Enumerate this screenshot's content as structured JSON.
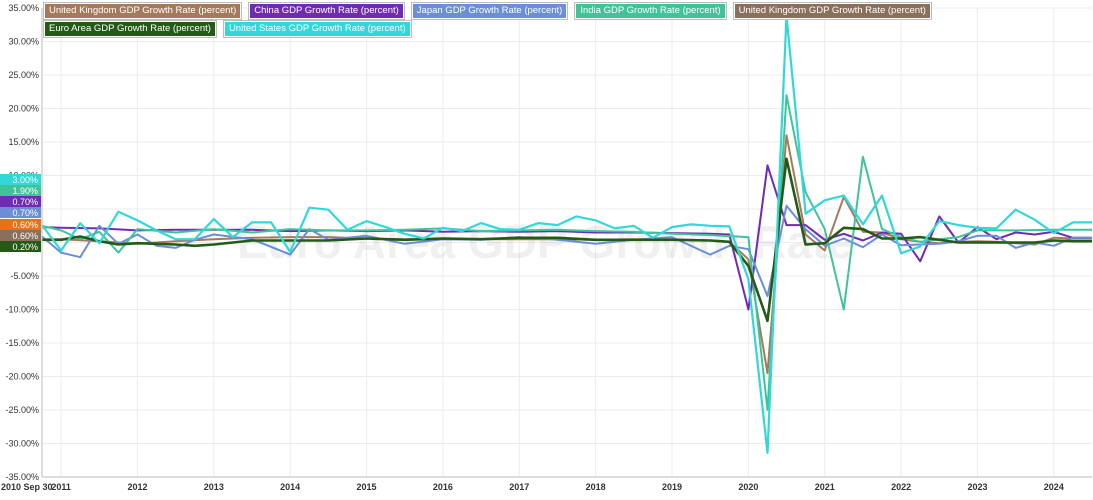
{
  "chart_data": {
    "type": "line",
    "watermark": "Euro Area GDP Growth Rate",
    "x_start_label": "2010 Sep 30",
    "x_ticks": [
      "2011",
      "2012",
      "2013",
      "2014",
      "2015",
      "2016",
      "2017",
      "2018",
      "2019",
      "2020",
      "2021",
      "2022",
      "2023",
      "2024"
    ],
    "y_ticks": [
      "35.00%",
      "30.00%",
      "25.00%",
      "20.00%",
      "15.00%",
      "10.00%",
      "5.00%",
      "0.00%",
      "-5.00%",
      "-10.00%",
      "-15.00%",
      "-20.00%",
      "-25.00%",
      "-30.00%",
      "-35.00%"
    ],
    "ylim": [
      -35,
      35
    ],
    "xlim": [
      2010.75,
      2024.5
    ],
    "series": [
      {
        "name": "United Kingdom GDP Growth Rate (percent)",
        "color": "#a47a5c",
        "end_label": "0.60%",
        "values": [
          [
            2010.75,
            0.5
          ],
          [
            2011.0,
            0.5
          ],
          [
            2011.5,
            0.2
          ],
          [
            2012.0,
            -0.2
          ],
          [
            2012.5,
            0.2
          ],
          [
            2013.0,
            0.5
          ],
          [
            2013.5,
            0.7
          ],
          [
            2014.0,
            0.8
          ],
          [
            2014.5,
            0.8
          ],
          [
            2015.0,
            0.6
          ],
          [
            2015.5,
            0.5
          ],
          [
            2016.0,
            0.5
          ],
          [
            2016.5,
            0.5
          ],
          [
            2017.0,
            0.5
          ],
          [
            2017.5,
            0.5
          ],
          [
            2018.0,
            0.4
          ],
          [
            2018.5,
            0.5
          ],
          [
            2019.0,
            0.5
          ],
          [
            2019.5,
            0.3
          ],
          [
            2019.75,
            0.1
          ],
          [
            2020.0,
            -2.5
          ],
          [
            2020.25,
            -19.5
          ],
          [
            2020.5,
            16.0
          ],
          [
            2020.75,
            1.2
          ],
          [
            2021.0,
            -1.2
          ],
          [
            2021.25,
            6.8
          ],
          [
            2021.5,
            1.6
          ],
          [
            2021.75,
            1.5
          ],
          [
            2022.0,
            0.5
          ],
          [
            2022.25,
            0.1
          ],
          [
            2022.5,
            -0.1
          ],
          [
            2022.75,
            0.1
          ],
          [
            2023.0,
            0.2
          ],
          [
            2023.25,
            0.1
          ],
          [
            2023.5,
            -0.1
          ],
          [
            2023.75,
            -0.3
          ],
          [
            2024.0,
            0.7
          ],
          [
            2024.25,
            0.6
          ],
          [
            2024.5,
            0.6
          ]
        ]
      },
      {
        "name": "China GDP Growth Rate (percent)",
        "color": "#6f2bb2",
        "end_label": "0.70%",
        "values": [
          [
            2010.75,
            2.3
          ],
          [
            2011.0,
            2.2
          ],
          [
            2011.5,
            2.1
          ],
          [
            2012.0,
            1.8
          ],
          [
            2012.5,
            1.9
          ],
          [
            2013.0,
            1.9
          ],
          [
            2013.5,
            1.9
          ],
          [
            2014.0,
            1.7
          ],
          [
            2014.5,
            1.8
          ],
          [
            2015.0,
            1.7
          ],
          [
            2015.5,
            1.8
          ],
          [
            2016.0,
            1.6
          ],
          [
            2016.5,
            1.7
          ],
          [
            2017.0,
            1.6
          ],
          [
            2017.5,
            1.7
          ],
          [
            2018.0,
            1.5
          ],
          [
            2018.5,
            1.5
          ],
          [
            2019.0,
            1.4
          ],
          [
            2019.5,
            1.3
          ],
          [
            2019.75,
            1.2
          ],
          [
            2020.0,
            -10.0
          ],
          [
            2020.25,
            11.5
          ],
          [
            2020.5,
            2.6
          ],
          [
            2020.75,
            2.6
          ],
          [
            2021.0,
            0.4
          ],
          [
            2021.25,
            1.3
          ],
          [
            2021.5,
            0.3
          ],
          [
            2021.75,
            1.5
          ],
          [
            2022.0,
            1.3
          ],
          [
            2022.25,
            -2.8
          ],
          [
            2022.5,
            3.9
          ],
          [
            2022.75,
            0.0
          ],
          [
            2023.0,
            2.3
          ],
          [
            2023.25,
            0.5
          ],
          [
            2023.5,
            1.5
          ],
          [
            2023.75,
            1.2
          ],
          [
            2024.0,
            1.6
          ],
          [
            2024.25,
            0.7
          ],
          [
            2024.5,
            0.7
          ]
        ]
      },
      {
        "name": "Japan GDP Growth Rate (percent)",
        "color": "#6b8ed6",
        "end_label": "0.70%",
        "values": [
          [
            2010.75,
            0.9
          ],
          [
            2011.0,
            -1.5
          ],
          [
            2011.25,
            -2.2
          ],
          [
            2011.5,
            2.5
          ],
          [
            2011.75,
            -0.2
          ],
          [
            2012.0,
            1.2
          ],
          [
            2012.25,
            -0.5
          ],
          [
            2012.5,
            -0.8
          ],
          [
            2012.75,
            0.4
          ],
          [
            2013.0,
            1.2
          ],
          [
            2013.5,
            0.5
          ],
          [
            2014.0,
            -1.8
          ],
          [
            2014.25,
            2.0
          ],
          [
            2014.5,
            0.4
          ],
          [
            2015.0,
            1.0
          ],
          [
            2015.5,
            -0.2
          ],
          [
            2016.0,
            0.5
          ],
          [
            2016.5,
            0.4
          ],
          [
            2017.0,
            0.8
          ],
          [
            2017.5,
            0.4
          ],
          [
            2018.0,
            -0.2
          ],
          [
            2018.5,
            0.4
          ],
          [
            2019.0,
            0.8
          ],
          [
            2019.5,
            -1.8
          ],
          [
            2019.75,
            -0.5
          ],
          [
            2020.0,
            -1.0
          ],
          [
            2020.25,
            -8.0
          ],
          [
            2020.5,
            5.5
          ],
          [
            2020.75,
            2.0
          ],
          [
            2021.0,
            -0.5
          ],
          [
            2021.25,
            0.6
          ],
          [
            2021.5,
            -0.7
          ],
          [
            2021.75,
            1.2
          ],
          [
            2022.0,
            -0.4
          ],
          [
            2022.5,
            -0.2
          ],
          [
            2022.75,
            0.2
          ],
          [
            2023.0,
            1.0
          ],
          [
            2023.25,
            1.0
          ],
          [
            2023.5,
            -0.8
          ],
          [
            2023.75,
            0.0
          ],
          [
            2024.0,
            -0.5
          ],
          [
            2024.25,
            0.7
          ],
          [
            2024.5,
            0.7
          ]
        ]
      },
      {
        "name": "India GDP Growth Rate (percent)",
        "color": "#3fc49a",
        "end_label": "1.90%",
        "values": [
          [
            2010.75,
            2.5
          ],
          [
            2011.0,
            1.8
          ],
          [
            2011.25,
            0.5
          ],
          [
            2011.5,
            1.6
          ],
          [
            2011.75,
            -1.5
          ],
          [
            2012.0,
            2.0
          ],
          [
            2012.5,
            1.5
          ],
          [
            2013.0,
            2.0
          ],
          [
            2013.5,
            1.5
          ],
          [
            2014.0,
            2.0
          ],
          [
            2014.5,
            1.8
          ],
          [
            2015.0,
            1.8
          ],
          [
            2015.5,
            1.9
          ],
          [
            2016.0,
            2.1
          ],
          [
            2016.5,
            1.7
          ],
          [
            2017.0,
            1.8
          ],
          [
            2017.5,
            1.9
          ],
          [
            2018.0,
            1.7
          ],
          [
            2018.5,
            1.6
          ],
          [
            2019.0,
            1.3
          ],
          [
            2019.5,
            1.1
          ],
          [
            2020.0,
            0.8
          ],
          [
            2020.25,
            -25.0
          ],
          [
            2020.5,
            22.0
          ],
          [
            2020.75,
            7.5
          ],
          [
            2021.0,
            2.0
          ],
          [
            2021.25,
            -10.0
          ],
          [
            2021.5,
            12.8
          ],
          [
            2021.75,
            2.0
          ],
          [
            2022.0,
            0.8
          ],
          [
            2022.25,
            0.1
          ],
          [
            2022.5,
            0.5
          ],
          [
            2022.75,
            0.8
          ],
          [
            2023.0,
            1.8
          ],
          [
            2023.5,
            1.8
          ],
          [
            2024.0,
            1.9
          ],
          [
            2024.5,
            1.9
          ]
        ]
      },
      {
        "name": "United Kingdom GDP Growth Rate (percent)",
        "color": "#8a6f5c",
        "end_label": "0.60%",
        "values": []
      },
      {
        "name": "Euro Area GDP Growth Rate (percent)",
        "color": "#235b16",
        "end_label": "0.20%",
        "values": [
          [
            2010.75,
            0.4
          ],
          [
            2011.0,
            0.4
          ],
          [
            2011.25,
            0.9
          ],
          [
            2011.5,
            0.2
          ],
          [
            2011.75,
            -0.3
          ],
          [
            2012.0,
            -0.1
          ],
          [
            2012.5,
            -0.3
          ],
          [
            2012.75,
            -0.5
          ],
          [
            2013.0,
            -0.3
          ],
          [
            2013.5,
            0.3
          ],
          [
            2014.0,
            0.3
          ],
          [
            2014.5,
            0.3
          ],
          [
            2015.0,
            0.6
          ],
          [
            2015.5,
            0.4
          ],
          [
            2016.0,
            0.6
          ],
          [
            2016.5,
            0.5
          ],
          [
            2017.0,
            0.7
          ],
          [
            2017.5,
            0.7
          ],
          [
            2018.0,
            0.4
          ],
          [
            2018.5,
            0.4
          ],
          [
            2019.0,
            0.4
          ],
          [
            2019.5,
            0.3
          ],
          [
            2019.75,
            0.1
          ],
          [
            2020.0,
            -3.5
          ],
          [
            2020.25,
            -11.7
          ],
          [
            2020.5,
            12.5
          ],
          [
            2020.75,
            -0.3
          ],
          [
            2021.0,
            -0.1
          ],
          [
            2021.25,
            2.2
          ],
          [
            2021.5,
            2.0
          ],
          [
            2021.75,
            0.6
          ],
          [
            2022.0,
            0.6
          ],
          [
            2022.25,
            0.8
          ],
          [
            2022.5,
            0.4
          ],
          [
            2022.75,
            0.0
          ],
          [
            2023.0,
            0.0
          ],
          [
            2023.5,
            0.0
          ],
          [
            2023.75,
            0.0
          ],
          [
            2024.0,
            0.3
          ],
          [
            2024.25,
            0.2
          ],
          [
            2024.5,
            0.2
          ]
        ]
      },
      {
        "name": "United States GDP Growth Rate (percent)",
        "color": "#32d7da",
        "end_label": "3.00%",
        "values": [
          [
            2010.75,
            2.6
          ],
          [
            2011.0,
            -1.2
          ],
          [
            2011.25,
            2.9
          ],
          [
            2011.5,
            -0.1
          ],
          [
            2011.75,
            4.6
          ],
          [
            2012.0,
            3.3
          ],
          [
            2012.25,
            1.8
          ],
          [
            2012.5,
            0.5
          ],
          [
            2012.75,
            0.5
          ],
          [
            2013.0,
            3.5
          ],
          [
            2013.25,
            0.8
          ],
          [
            2013.5,
            3.0
          ],
          [
            2013.75,
            3.0
          ],
          [
            2014.0,
            -1.4
          ],
          [
            2014.25,
            5.2
          ],
          [
            2014.5,
            4.9
          ],
          [
            2014.75,
            1.9
          ],
          [
            2015.0,
            3.2
          ],
          [
            2015.25,
            2.3
          ],
          [
            2015.5,
            1.3
          ],
          [
            2015.75,
            0.6
          ],
          [
            2016.0,
            2.2
          ],
          [
            2016.25,
            1.7
          ],
          [
            2016.5,
            2.9
          ],
          [
            2016.75,
            2.0
          ],
          [
            2017.0,
            1.9
          ],
          [
            2017.25,
            2.9
          ],
          [
            2017.5,
            2.6
          ],
          [
            2017.75,
            3.9
          ],
          [
            2018.0,
            3.3
          ],
          [
            2018.25,
            2.1
          ],
          [
            2018.5,
            2.5
          ],
          [
            2018.75,
            0.7
          ],
          [
            2019.0,
            2.3
          ],
          [
            2019.25,
            2.7
          ],
          [
            2019.5,
            2.5
          ],
          [
            2019.75,
            2.4
          ],
          [
            2020.0,
            -5.5
          ],
          [
            2020.25,
            -31.4
          ],
          [
            2020.5,
            33.8
          ],
          [
            2020.75,
            4.3
          ],
          [
            2021.0,
            6.3
          ],
          [
            2021.25,
            7.0
          ],
          [
            2021.5,
            2.7
          ],
          [
            2021.75,
            7.0
          ],
          [
            2022.0,
            -1.6
          ],
          [
            2022.25,
            -0.6
          ],
          [
            2022.5,
            3.2
          ],
          [
            2022.75,
            2.6
          ],
          [
            2023.0,
            2.2
          ],
          [
            2023.25,
            2.1
          ],
          [
            2023.5,
            4.9
          ],
          [
            2023.75,
            3.4
          ],
          [
            2024.0,
            1.4
          ],
          [
            2024.25,
            3.0
          ],
          [
            2024.5,
            3.0
          ]
        ]
      }
    ]
  }
}
